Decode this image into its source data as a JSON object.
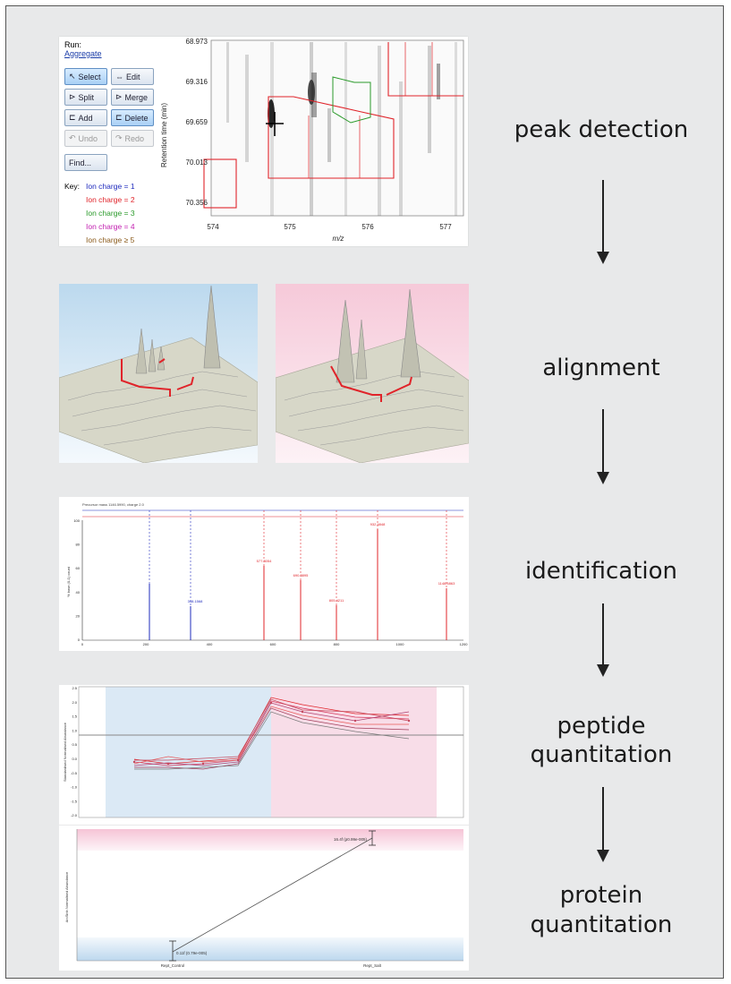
{
  "steps": {
    "peak_detection": "peak detection",
    "alignment": "alignment",
    "identification": "identification",
    "peptide_quant_l1": "peptide",
    "peptide_quant_l2": "quantitation",
    "protein_quant_l1": "protein",
    "protein_quant_l2": "quantitation"
  },
  "peak_panel": {
    "run_label": "Run:",
    "run_value": "Aggregate",
    "buttons": {
      "select": "Select",
      "edit": "Edit",
      "split": "Split",
      "merge": "Merge",
      "add": "Add",
      "delete": "Delete",
      "undo": "Undo",
      "redo": "Redo",
      "find": "Find..."
    },
    "key_label": "Key:",
    "key_items": [
      {
        "label": "Ion charge = 1",
        "color": "#1f2bbd"
      },
      {
        "label": "Ion charge = 2",
        "color": "#e0242a"
      },
      {
        "label": "Ion charge = 3",
        "color": "#2a9a2a"
      },
      {
        "label": "Ion charge = 4",
        "color": "#c21fb0"
      },
      {
        "label": "Ion charge ≥ 5",
        "color": "#8a5a1a"
      }
    ],
    "y_axis_title": "Retention time (min)",
    "x_axis_title": "m/z",
    "y_ticks": [
      "68.973",
      "69.316",
      "69.659",
      "70.013",
      "70.356"
    ],
    "x_ticks": [
      "574",
      "575",
      "576",
      "577"
    ]
  },
  "spectrum_panel": {
    "y_ticks": [
      "100",
      "80",
      "60",
      "40",
      "20",
      "0"
    ],
    "x_ticks": [
      "0",
      "200",
      "400",
      "600",
      "800",
      "1000",
      "1200"
    ]
  },
  "peptide_panel": {
    "y_ticks": [
      "2.5",
      "2.0",
      "1.5",
      "1.0",
      "0.5",
      "0.0",
      "-0.5",
      "-1.0",
      "-1.5",
      "-2.0"
    ]
  },
  "protein_panel": {
    "high_label": "16.4f (p0.99e-005)",
    "low_label": "0.11f (0.79e-005)",
    "x_labels": [
      "Rept_Control",
      "Rept_Salt"
    ]
  },
  "colors": {
    "background": "#e8e9ea",
    "frame_border": "#555555",
    "arrow": "#222222",
    "red_box": "#e0242a",
    "blue_line": "#3a3ad0",
    "condition_a": "#dbe9f5",
    "condition_b": "#f8dde8"
  }
}
